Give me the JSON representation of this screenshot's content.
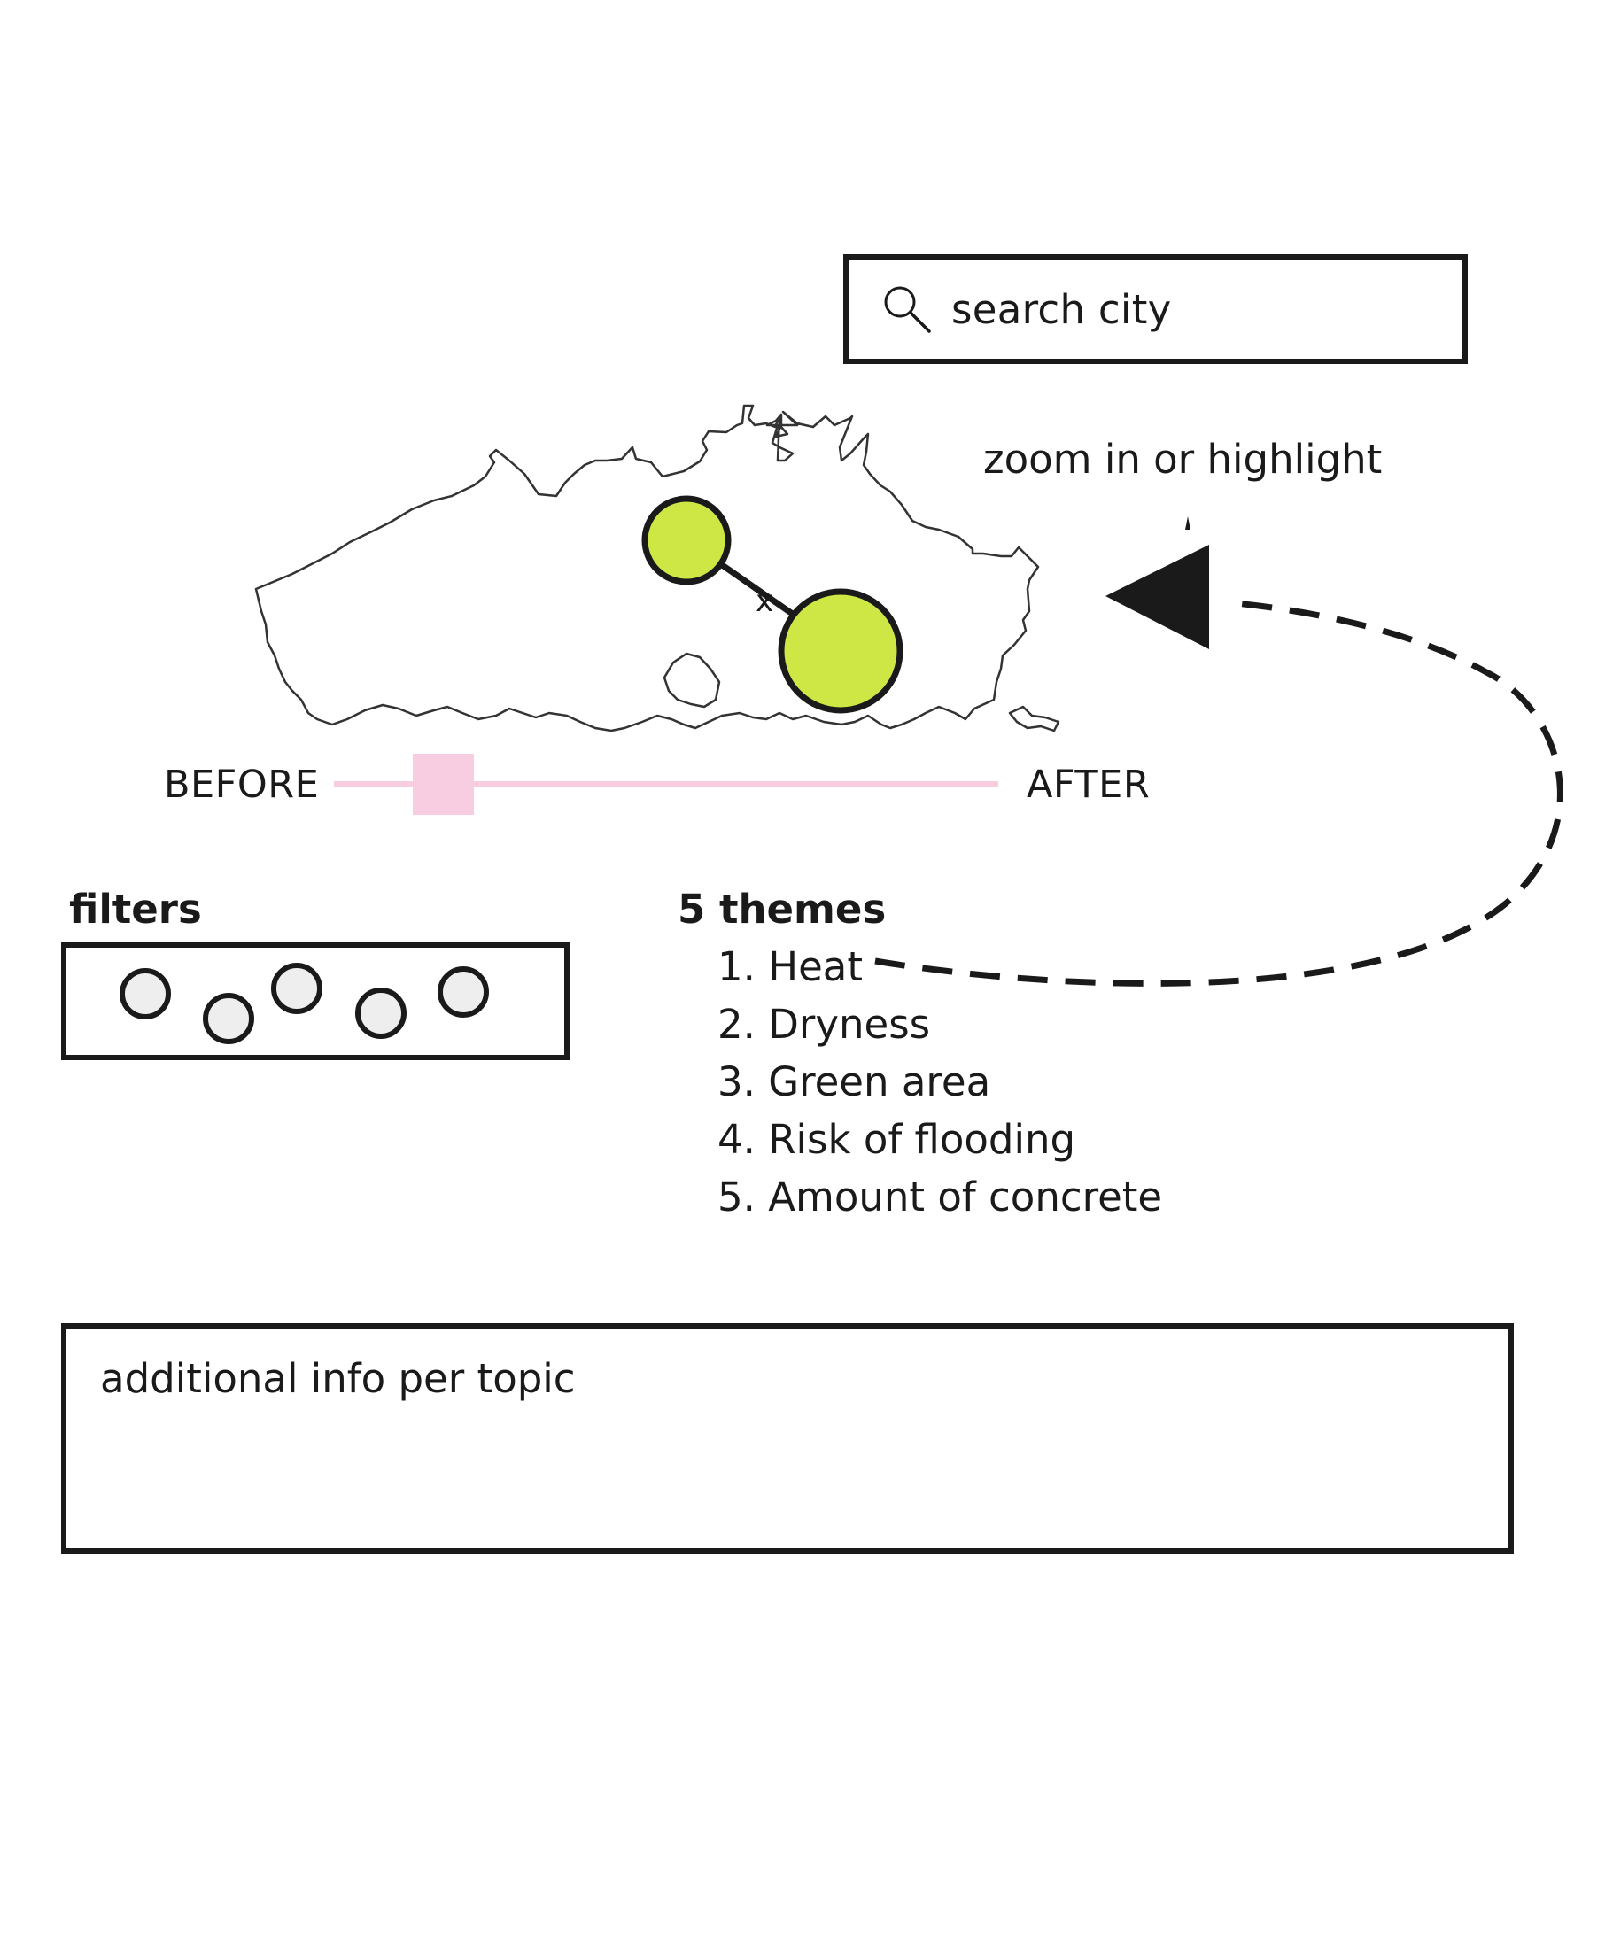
{
  "search": {
    "placeholder": "search city",
    "icon": "magnifier-icon"
  },
  "annotation": {
    "zoom_text": "zoom in or highlight"
  },
  "map": {
    "region_icon": "region-outline",
    "marker_color": "#cfe745",
    "markers": [
      "city-marker-1",
      "city-marker-2"
    ]
  },
  "slider": {
    "before_label": "BEFORE",
    "after_label": "AFTER",
    "color": "#f8cde1",
    "position_fraction": 0.15
  },
  "filters": {
    "title": "filters",
    "options_count": 5
  },
  "themes": {
    "title": "5 themes",
    "items": [
      "1. Heat",
      "2. Dryness",
      "3. Green area",
      "4. Risk of flooding",
      "5. Amount of concrete"
    ]
  },
  "info": {
    "text": "additional info per topic"
  }
}
